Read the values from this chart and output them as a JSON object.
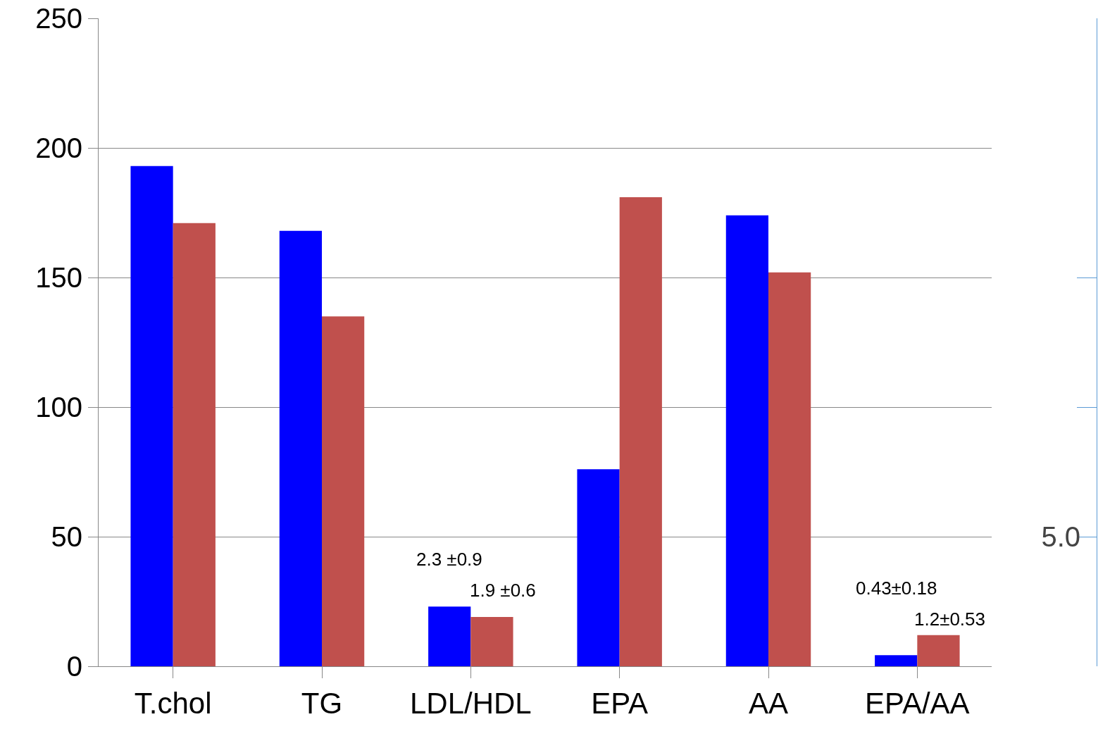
{
  "chart_data": {
    "type": "bar",
    "categories": [
      "T.chol",
      "TG",
      "LDL/HDL",
      "EPA",
      "AA",
      "EPA/AA"
    ],
    "series": [
      {
        "color": "#0000ff",
        "values": [
          193,
          168,
          null,
          76,
          174,
          null
        ]
      },
      {
        "color": "#c0504d",
        "values": [
          171,
          135,
          null,
          181,
          152,
          null
        ]
      },
      {
        "color": "#0000ff",
        "axis": "y2",
        "values": [
          null,
          null,
          2.3,
          null,
          null,
          0.43
        ],
        "value_labels": [
          null,
          null,
          "2.3 ±0.9",
          null,
          null,
          "0.43±0.18"
        ]
      },
      {
        "color": "#c0504d",
        "axis": "y2",
        "values": [
          null,
          null,
          1.9,
          null,
          null,
          1.2
        ],
        "value_labels": [
          null,
          null,
          "1.9 ±0.6",
          null,
          null,
          "1.2±0.53"
        ]
      }
    ],
    "ylim": [
      0,
      250
    ],
    "yticks": [
      0,
      50,
      100,
      150,
      200,
      250
    ],
    "y2lim": [
      0,
      25
    ],
    "y2ticks": [
      {
        "value": 5,
        "label": "5.0"
      },
      {
        "value": 10,
        "label": null
      },
      {
        "value": 15,
        "label": null
      }
    ],
    "grid": "y"
  }
}
